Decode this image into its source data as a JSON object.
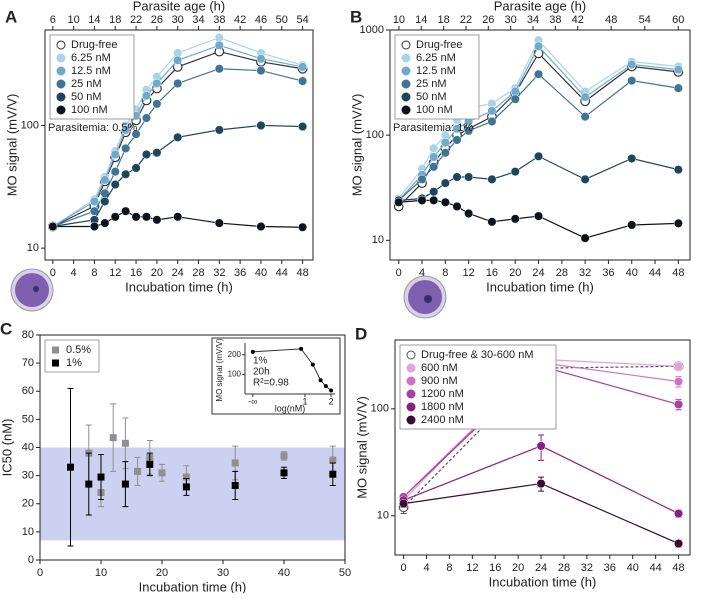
{
  "chart_data": [
    {
      "type": "line",
      "title": "A",
      "xlabel": "Incubation time (h)",
      "ylabel": "MO signal (mV/V)",
      "x2label": "Parasite age (h)",
      "annotation": "Parasitemia: 0.5%",
      "log_y": true,
      "legend": "upper left",
      "xlim": [
        -1.5,
        50
      ],
      "xticks": [
        0,
        4,
        8,
        12,
        16,
        20,
        24,
        28,
        32,
        36,
        40,
        44,
        48
      ],
      "x2lim": [
        4.5,
        56
      ],
      "x2ticks": [
        6,
        10,
        14,
        18,
        22,
        26,
        30,
        34,
        38,
        42,
        46,
        50,
        54
      ],
      "ylim": [
        8,
        600
      ],
      "yticks": [
        10,
        100
      ],
      "x": [
        0,
        8,
        10,
        12,
        14,
        16,
        18,
        20,
        24,
        32,
        40,
        48
      ],
      "series": [
        {
          "name": "Drug-free",
          "color": "#333333",
          "marker": "open",
          "values": [
            15,
            22,
            35,
            55,
            88,
            110,
            160,
            200,
            300,
            400,
            330,
            290
          ]
        },
        {
          "name": "6.25 nM",
          "color": "#a8d4ea",
          "values": [
            15,
            25,
            38,
            62,
            100,
            135,
            195,
            250,
            390,
            520,
            390,
            310
          ]
        },
        {
          "name": "12.5 nM",
          "color": "#6fa9cb",
          "values": [
            15,
            24,
            36,
            58,
            92,
            120,
            175,
            220,
            340,
            450,
            350,
            300
          ]
        },
        {
          "name": "25 nM",
          "color": "#3e7596",
          "values": [
            15,
            20,
            28,
            42,
            65,
            85,
            115,
            150,
            220,
            290,
            280,
            230
          ]
        },
        {
          "name": "50 nM",
          "color": "#1d465c",
          "values": [
            15,
            17,
            24,
            33,
            40,
            45,
            58,
            60,
            80,
            92,
            100,
            98
          ]
        },
        {
          "name": "100 nM",
          "color": "#0b141b",
          "values": [
            15,
            15,
            16,
            18,
            20,
            18,
            18,
            17,
            18,
            16,
            15,
            14.8
          ]
        }
      ]
    },
    {
      "type": "line",
      "title": "B",
      "xlabel": "Incubation time (h)",
      "ylabel": "MO signal (mV/V)",
      "x2label": "Parasite age (h)",
      "annotation": "Parasitemia: 1%",
      "log_y": true,
      "legend": "upper left",
      "xlim": [
        -1.5,
        50
      ],
      "xticks": [
        0,
        4,
        8,
        12,
        16,
        20,
        24,
        28,
        32,
        36,
        40,
        44,
        48
      ],
      "x2lim": [
        8.4,
        62.1
      ],
      "x2ticks": [
        10,
        14,
        18,
        22,
        26,
        30,
        34,
        38,
        42,
        48,
        54,
        60
      ],
      "ylim": [
        6.5,
        1000
      ],
      "yticks": [
        10,
        100,
        1000
      ],
      "x": [
        0,
        4,
        6,
        8,
        10,
        12,
        16,
        20,
        24,
        32,
        40,
        48
      ],
      "series": [
        {
          "name": "Drug-free",
          "color": "#333333",
          "marker": "open",
          "values": [
            21,
            35,
            55,
            75,
            100,
            115,
            150,
            250,
            600,
            210,
            450,
            400
          ]
        },
        {
          "name": "6.25 nM",
          "color": "#a8d4ea",
          "values": [
            25,
            48,
            75,
            100,
            140,
            180,
            200,
            280,
            800,
            260,
            500,
            450
          ]
        },
        {
          "name": "12.5 nM",
          "color": "#6fa9cb",
          "values": [
            24,
            42,
            62,
            85,
            115,
            135,
            170,
            260,
            700,
            230,
            470,
            420
          ]
        },
        {
          "name": "25 nM",
          "color": "#3e7596",
          "values": [
            24,
            38,
            50,
            68,
            90,
            110,
            135,
            220,
            380,
            150,
            330,
            280
          ]
        },
        {
          "name": "50 nM",
          "color": "#1d465c",
          "values": [
            24,
            25,
            29,
            35,
            40,
            40,
            38,
            45,
            63,
            38,
            60,
            47
          ]
        },
        {
          "name": "100 nM",
          "color": "#0b141b",
          "values": [
            23,
            24,
            24,
            23,
            21,
            18,
            15,
            16,
            17,
            10.5,
            14,
            14.5
          ]
        }
      ]
    },
    {
      "type": "scatter",
      "title": "C",
      "xlabel": "Incubation time (h)",
      "ylabel": "IC50 (nM)",
      "legend": "upper left",
      "xlim": [
        0,
        50
      ],
      "xticks": [
        0,
        10,
        20,
        30,
        40,
        50
      ],
      "ylim": [
        0,
        80
      ],
      "yticks": [
        0,
        10,
        20,
        30,
        40,
        50,
        60,
        70,
        80
      ],
      "band": [
        7,
        40
      ],
      "band_color": "#ccd1f1",
      "series": [
        {
          "name": "0.5%",
          "color": "#8f8f8f",
          "x": [
            8,
            10,
            12,
            14,
            16,
            18,
            20,
            24,
            32,
            40,
            48
          ],
          "values": [
            38,
            24,
            43.5,
            41.5,
            31.5,
            36.5,
            31,
            29.5,
            34.5,
            37,
            35.5
          ],
          "errors": [
            10,
            5,
            12,
            9,
            5,
            6,
            3,
            4,
            6,
            1.5,
            5
          ]
        },
        {
          "name": "1%",
          "color": "#000000",
          "x": [
            5,
            8,
            10,
            14,
            18,
            24,
            32,
            40,
            48
          ],
          "values": [
            33,
            27,
            29.5,
            27,
            34,
            26,
            26.5,
            31,
            30.5
          ],
          "errors": [
            28,
            11,
            8,
            8,
            4,
            3,
            5,
            2,
            4
          ]
        }
      ],
      "inset": {
        "ylabel": "MO signal (mV/V)",
        "xlabel": "log(nM)",
        "texts": [
          "1%",
          "20h",
          "R²=0.98"
        ],
        "xlim": [
          -1.3,
          2.15
        ],
        "xticks": [
          {
            "value": -1,
            "label": "-∞"
          },
          1,
          2
        ],
        "ylim": [
          0,
          260
        ],
        "yticks": [
          100,
          200
        ],
        "x": [
          -1,
          0.85,
          1.3,
          1.6,
          1.8,
          2.0
        ],
        "values": [
          215,
          230,
          150,
          70,
          40,
          18
        ]
      }
    },
    {
      "type": "line",
      "title": "D",
      "xlabel": "Incubation time (h)",
      "ylabel": "MO signal (mV/V)",
      "log_y": true,
      "legend": "upper left",
      "xlim": [
        -1.5,
        50
      ],
      "xticks": [
        0,
        4,
        8,
        12,
        16,
        20,
        24,
        28,
        32,
        36,
        40,
        44,
        48
      ],
      "ylim": [
        4.3,
        440
      ],
      "yticks": [
        10,
        100
      ],
      "x": [
        0,
        24,
        48
      ],
      "series": [
        {
          "name": "Drug-free & 30-600 nM",
          "color": "#555555",
          "marker": "open",
          "dash": true,
          "values": [
            12,
            240,
            250
          ],
          "errors": [
            1.5,
            30,
            15
          ]
        },
        {
          "name": "600 nM",
          "color": "#e8a0dc",
          "values": [
            14,
            290,
            250
          ],
          "errors": [
            1,
            30,
            20
          ]
        },
        {
          "name": "900 nM",
          "color": "#d070c4",
          "values": [
            15,
            270,
            180
          ],
          "errors": [
            1,
            30,
            20
          ]
        },
        {
          "name": "1200 nM",
          "color": "#a8409c",
          "values": [
            15,
            250,
            110
          ],
          "errors": [
            1,
            30,
            12
          ]
        },
        {
          "name": "1800 nM",
          "color": "#8a1f88",
          "values": [
            14,
            45,
            10.5
          ],
          "errors": [
            1,
            12,
            0.8
          ]
        },
        {
          "name": "2400 nM",
          "color": "#3d0a35",
          "values": [
            13,
            20,
            5.5
          ],
          "errors": [
            1,
            3,
            0.4
          ]
        }
      ]
    }
  ]
}
